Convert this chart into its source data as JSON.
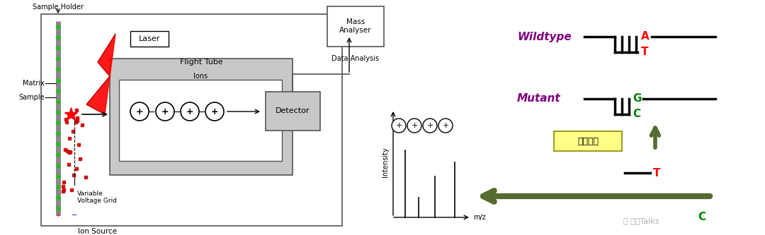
{
  "bg_color": "#ffffff",
  "fig_width": 10.8,
  "fig_height": 3.33,
  "sample_holder_label": "Sample Holder",
  "matrix_label": "Matrix",
  "sample_label": "Sample",
  "ion_source_label": "Ion Source",
  "laser_label": "Laser",
  "flight_tube_label": "Flight Tube",
  "ions_label": "Ions",
  "detector_label": "Detector",
  "mass_analyser_label": "Mass\nAnalyser",
  "data_analysis_label": "Data Analysis",
  "variable_voltage_label": "Variable\nVoltage Grid",
  "intensity_label": "Intensity",
  "mz_label": "m/z",
  "wildtype_label": "Wildtype",
  "mutant_label": "Mutant",
  "primer_extension_label": "引物延伸",
  "T_red": "#ff0000",
  "A_red": "#ff0000",
  "C_green": "#008000",
  "G_green": "#008000",
  "purple_color": "#800080",
  "dark_olive": "#556B2F",
  "yellow_box_color": "#ffff88",
  "gray_light": "#c8c8c8",
  "dark_gray": "#555555"
}
